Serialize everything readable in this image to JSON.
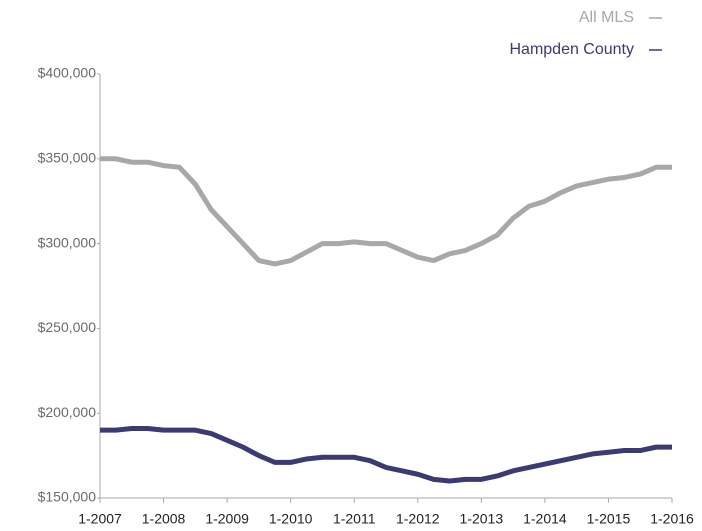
{
  "chart_data": {
    "type": "line",
    "categories": [
      "1-2007",
      null,
      null,
      null,
      "1-2008",
      null,
      null,
      null,
      "1-2009",
      null,
      null,
      null,
      "1-2010",
      null,
      null,
      null,
      "1-2011",
      null,
      null,
      null,
      "1-2012",
      null,
      null,
      null,
      "1-2013",
      null,
      null,
      null,
      "1-2014",
      null,
      null,
      null,
      "1-2015",
      null,
      null,
      null,
      "1-2016"
    ],
    "series": [
      {
        "name": "All MLS",
        "color": "#a8a8a8",
        "values": [
          350000,
          350000,
          348000,
          348000,
          346000,
          345000,
          335000,
          320000,
          310000,
          300000,
          290000,
          288000,
          290000,
          295000,
          300000,
          300000,
          301000,
          300000,
          300000,
          296000,
          292000,
          290000,
          294000,
          296000,
          300000,
          305000,
          315000,
          322000,
          325000,
          330000,
          334000,
          336000,
          338000,
          339000,
          341000,
          345000,
          345000
        ]
      },
      {
        "name": "Hampden County",
        "color": "#3b3a73",
        "values": [
          190000,
          190000,
          191000,
          191000,
          190000,
          190000,
          190000,
          188000,
          184000,
          180000,
          175000,
          171000,
          171000,
          173000,
          174000,
          174000,
          174000,
          172000,
          168000,
          166000,
          164000,
          161000,
          160000,
          161000,
          161000,
          163000,
          166000,
          168000,
          170000,
          172000,
          174000,
          176000,
          177000,
          178000,
          178000,
          180000,
          180000
        ]
      }
    ],
    "ylim": [
      150000,
      400000
    ],
    "yticks": [
      {
        "value": 150000,
        "label": "$150,000"
      },
      {
        "value": 200000,
        "label": "$200,000"
      },
      {
        "value": 250000,
        "label": "$250,000"
      },
      {
        "value": 300000,
        "label": "$300,000"
      },
      {
        "value": 350000,
        "label": "$350,000"
      },
      {
        "value": 400000,
        "label": "$400,000"
      }
    ],
    "legend": "top-right"
  }
}
